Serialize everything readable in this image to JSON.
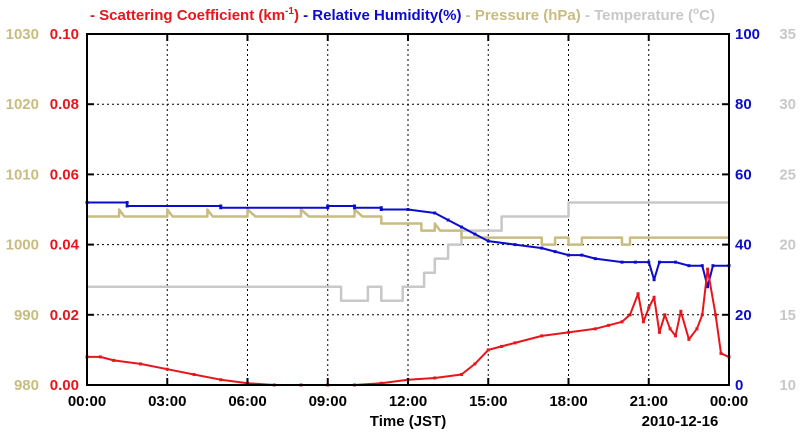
{
  "chart_data": {
    "type": "line",
    "date_label": "2010-12-16",
    "xlabel": "Time (JST)",
    "x_range_hours": [
      0,
      24
    ],
    "x_ticks": [
      "00:00",
      "03:00",
      "06:00",
      "09:00",
      "12:00",
      "15:00",
      "18:00",
      "21:00",
      "00:00"
    ],
    "legend": [
      {
        "key": "scat",
        "label": "Scattering Coefficient (km",
        "sup": "-1",
        "suffix": ")",
        "color": "#e8151b"
      },
      {
        "key": "rh",
        "label": "Relative Humidity(%)",
        "color": "#0c0ccc"
      },
      {
        "key": "pres",
        "label": "Pressure (hPa)",
        "color": "#c8bc80"
      },
      {
        "key": "temp",
        "label": "Temperature (",
        "sup": "o",
        "suffix": "C)",
        "color": "#c8c8c8"
      }
    ],
    "axes": {
      "pres": {
        "ylim": [
          980,
          1030
        ],
        "ticks": [
          "980",
          "990",
          "1000",
          "1010",
          "1020",
          "1030"
        ],
        "color": "#c8bc80"
      },
      "scat": {
        "ylim": [
          0,
          0.1
        ],
        "ticks": [
          "0.00",
          "0.02",
          "0.04",
          "0.06",
          "0.08",
          "0.10"
        ],
        "color": "#e8151b"
      },
      "rh": {
        "ylim": [
          0,
          100
        ],
        "ticks": [
          "0",
          "20",
          "40",
          "60",
          "80",
          "100"
        ],
        "color": "#0c0ccc"
      },
      "temp": {
        "ylim": [
          10,
          35
        ],
        "ticks": [
          "10",
          "15",
          "20",
          "25",
          "30",
          "35"
        ],
        "color": "#c8c8c8"
      }
    },
    "series": [
      {
        "name": "Temperature",
        "key": "temp",
        "color": "#c8c8c8",
        "markers": false,
        "points": [
          [
            0,
            17
          ],
          [
            9.5,
            17
          ],
          [
            9.5,
            16
          ],
          [
            10.5,
            16
          ],
          [
            10.5,
            17
          ],
          [
            11,
            17
          ],
          [
            11,
            16
          ],
          [
            11.8,
            16
          ],
          [
            11.8,
            17
          ],
          [
            12.6,
            17
          ],
          [
            12.6,
            18
          ],
          [
            13,
            18
          ],
          [
            13,
            19
          ],
          [
            13.5,
            19
          ],
          [
            13.5,
            20
          ],
          [
            14,
            20
          ],
          [
            14,
            21
          ],
          [
            15.5,
            21
          ],
          [
            15.5,
            22
          ],
          [
            18,
            22
          ],
          [
            18,
            23
          ],
          [
            24,
            23
          ]
        ]
      },
      {
        "name": "Pressure",
        "key": "pres",
        "color": "#c8bc80",
        "markers": false,
        "points": [
          [
            0,
            1004
          ],
          [
            1.2,
            1004
          ],
          [
            1.2,
            1005
          ],
          [
            1.4,
            1004
          ],
          [
            3,
            1004
          ],
          [
            3,
            1005
          ],
          [
            3.2,
            1004
          ],
          [
            4.5,
            1004
          ],
          [
            4.5,
            1005
          ],
          [
            4.7,
            1004
          ],
          [
            6,
            1004
          ],
          [
            6,
            1005
          ],
          [
            6.3,
            1004
          ],
          [
            8,
            1004
          ],
          [
            8,
            1005
          ],
          [
            8.3,
            1004
          ],
          [
            10,
            1004
          ],
          [
            10,
            1005
          ],
          [
            10.3,
            1004
          ],
          [
            11,
            1004
          ],
          [
            11,
            1003
          ],
          [
            12.5,
            1003
          ],
          [
            12.5,
            1002
          ],
          [
            13,
            1002
          ],
          [
            13,
            1003
          ],
          [
            13.2,
            1002
          ],
          [
            14,
            1002
          ],
          [
            14,
            1001
          ],
          [
            17,
            1001
          ],
          [
            17,
            1000
          ],
          [
            17.5,
            1000
          ],
          [
            17.5,
            1001
          ],
          [
            18,
            1001
          ],
          [
            18,
            1000
          ],
          [
            18.5,
            1000
          ],
          [
            18.5,
            1001
          ],
          [
            20,
            1001
          ],
          [
            20,
            1000
          ],
          [
            20.3,
            1000
          ],
          [
            20.3,
            1001
          ],
          [
            24,
            1001
          ]
        ]
      },
      {
        "name": "Relative Humidity",
        "key": "rh",
        "color": "#0c0ccc",
        "markers": true,
        "points": [
          [
            0,
            52
          ],
          [
            1.5,
            52
          ],
          [
            1.5,
            51
          ],
          [
            5,
            51
          ],
          [
            5,
            50.5
          ],
          [
            9,
            50.5
          ],
          [
            9,
            51
          ],
          [
            10,
            51
          ],
          [
            10,
            50.5
          ],
          [
            11,
            50.5
          ],
          [
            11,
            50
          ],
          [
            12,
            50
          ],
          [
            13,
            49
          ],
          [
            13.5,
            47
          ],
          [
            14,
            45
          ],
          [
            14.5,
            43
          ],
          [
            15,
            41
          ],
          [
            16,
            40
          ],
          [
            17,
            39
          ],
          [
            17.5,
            38
          ],
          [
            18,
            37
          ],
          [
            18.5,
            37
          ],
          [
            19,
            36
          ],
          [
            20,
            35
          ],
          [
            20.5,
            35
          ],
          [
            21,
            35
          ],
          [
            21.2,
            30
          ],
          [
            21.4,
            35
          ],
          [
            22,
            35
          ],
          [
            22.5,
            34
          ],
          [
            23,
            34
          ],
          [
            23.2,
            28
          ],
          [
            23.4,
            34
          ],
          [
            24,
            34
          ]
        ]
      },
      {
        "name": "Scattering Coefficient",
        "key": "scat",
        "color": "#e8151b",
        "markers": true,
        "points": [
          [
            0,
            0.008
          ],
          [
            0.5,
            0.008
          ],
          [
            1,
            0.007
          ],
          [
            2,
            0.006
          ],
          [
            3,
            0.0045
          ],
          [
            4,
            0.003
          ],
          [
            5,
            0.0015
          ],
          [
            6,
            0.0005
          ],
          [
            7,
            0.0
          ],
          [
            8,
            0.0
          ],
          [
            9,
            0.0
          ],
          [
            10,
            0.0
          ],
          [
            11,
            0.0005
          ],
          [
            12,
            0.0015
          ],
          [
            13,
            0.002
          ],
          [
            14,
            0.003
          ],
          [
            14.5,
            0.006
          ],
          [
            15,
            0.01
          ],
          [
            15.5,
            0.011
          ],
          [
            16,
            0.012
          ],
          [
            17,
            0.014
          ],
          [
            18,
            0.015
          ],
          [
            19,
            0.016
          ],
          [
            19.5,
            0.017
          ],
          [
            20,
            0.018
          ],
          [
            20.3,
            0.02
          ],
          [
            20.6,
            0.026
          ],
          [
            20.8,
            0.018
          ],
          [
            21,
            0.022
          ],
          [
            21.2,
            0.025
          ],
          [
            21.4,
            0.015
          ],
          [
            21.6,
            0.02
          ],
          [
            21.8,
            0.016
          ],
          [
            22,
            0.014
          ],
          [
            22.2,
            0.021
          ],
          [
            22.5,
            0.013
          ],
          [
            22.8,
            0.016
          ],
          [
            23,
            0.02
          ],
          [
            23.2,
            0.033
          ],
          [
            23.5,
            0.02
          ],
          [
            23.7,
            0.009
          ],
          [
            24,
            0.008
          ]
        ]
      }
    ]
  }
}
